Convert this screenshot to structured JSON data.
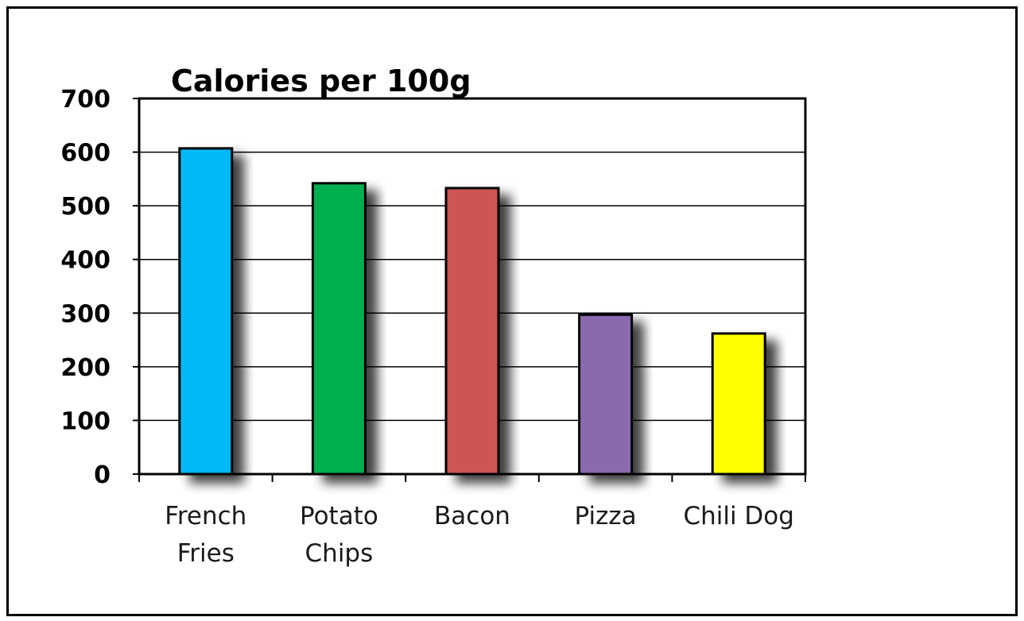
{
  "chart_data": {
    "type": "bar",
    "title": "Calories per 100g",
    "xlabel": "",
    "ylabel": "",
    "categories": [
      [
        "French",
        "Fries"
      ],
      [
        "Potato",
        "Chips"
      ],
      [
        "Bacon"
      ],
      [
        "Pizza"
      ],
      [
        "Chili Dog"
      ]
    ],
    "values": [
      607,
      542,
      533,
      297,
      262
    ],
    "colors": [
      "#00b8f5",
      "#00b050",
      "#cd5552",
      "#8a6aac",
      "#ffff00"
    ],
    "ylim": [
      0,
      700
    ],
    "yticks": [
      "0",
      "100",
      "200",
      "300",
      "400",
      "500",
      "600",
      "700"
    ],
    "grid": true,
    "legend": "none"
  }
}
